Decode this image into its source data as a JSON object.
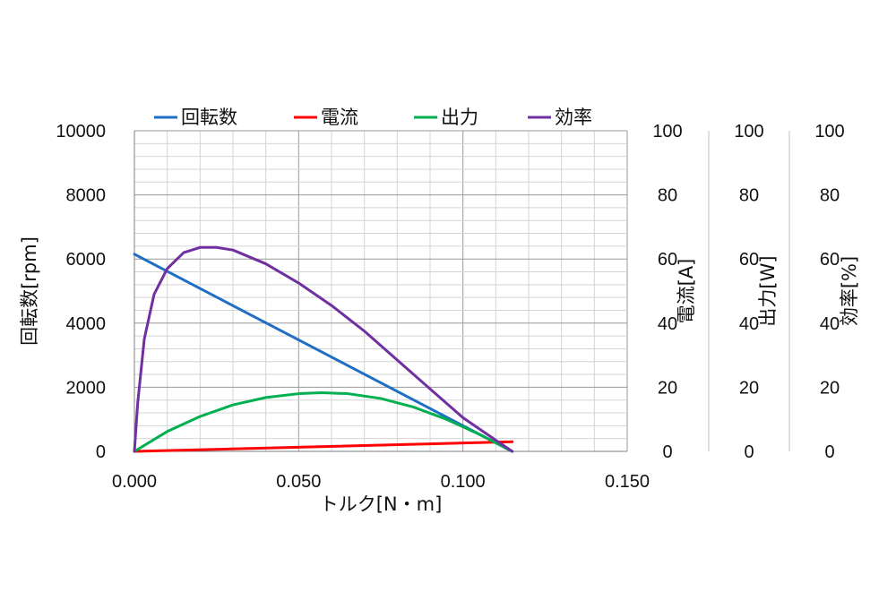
{
  "chart_data": {
    "type": "line",
    "xlabel": "トルク[N・m]",
    "xlim": [
      0,
      0.15
    ],
    "x_ticks": [
      "0.000",
      "0.050",
      "0.100",
      "0.150"
    ],
    "x_minor_step": 0.01,
    "y_axes": [
      {
        "id": "rpm",
        "label": "回転数[rpm]",
        "ylim": [
          0,
          10000
        ],
        "ticks": [
          "0",
          "2000",
          "4000",
          "6000",
          "8000",
          "10000"
        ],
        "position": "left"
      },
      {
        "id": "current",
        "label": "電流[A]",
        "ylim": [
          0,
          100
        ],
        "ticks": [
          "0",
          "20",
          "40",
          "60",
          "80",
          "100"
        ],
        "position": "right-1"
      },
      {
        "id": "power",
        "label": "出力[W]",
        "ylim": [
          0,
          100
        ],
        "ticks": [
          "0",
          "20",
          "40",
          "60",
          "80",
          "100"
        ],
        "position": "right-2"
      },
      {
        "id": "efficiency",
        "label": "効率[%]",
        "ylim": [
          0,
          100
        ],
        "ticks": [
          "0",
          "20",
          "40",
          "60",
          "80",
          "100"
        ],
        "position": "right-3"
      }
    ],
    "grid": true,
    "legend_position": "top",
    "series": [
      {
        "name": "回転数",
        "axis": "rpm",
        "color": "#1f6fc5",
        "x": [
          0,
          0.115
        ],
        "y": [
          6150,
          0
        ]
      },
      {
        "name": "電流",
        "axis": "current",
        "color": "#ff0000",
        "x": [
          0,
          0.115
        ],
        "y": [
          0,
          3
        ]
      },
      {
        "name": "出力",
        "axis": "power",
        "color": "#00b050",
        "x": [
          0,
          0.01,
          0.02,
          0.03,
          0.04,
          0.05,
          0.057,
          0.065,
          0.075,
          0.085,
          0.095,
          0.105,
          0.115
        ],
        "y": [
          0,
          6.2,
          10.9,
          14.5,
          16.8,
          18.0,
          18.3,
          18.0,
          16.5,
          13.8,
          10.0,
          5.3,
          0
        ]
      },
      {
        "name": "効率",
        "axis": "efficiency",
        "color": "#7030a0",
        "x": [
          0,
          0.001,
          0.003,
          0.006,
          0.01,
          0.015,
          0.02,
          0.025,
          0.03,
          0.04,
          0.05,
          0.06,
          0.07,
          0.08,
          0.09,
          0.1,
          0.11,
          0.115
        ],
        "y": [
          0,
          15,
          35,
          49,
          57,
          62,
          63.6,
          63.6,
          62.8,
          58.5,
          52.5,
          45.5,
          37.5,
          28.5,
          19.5,
          10.5,
          3.5,
          0
        ]
      }
    ]
  }
}
